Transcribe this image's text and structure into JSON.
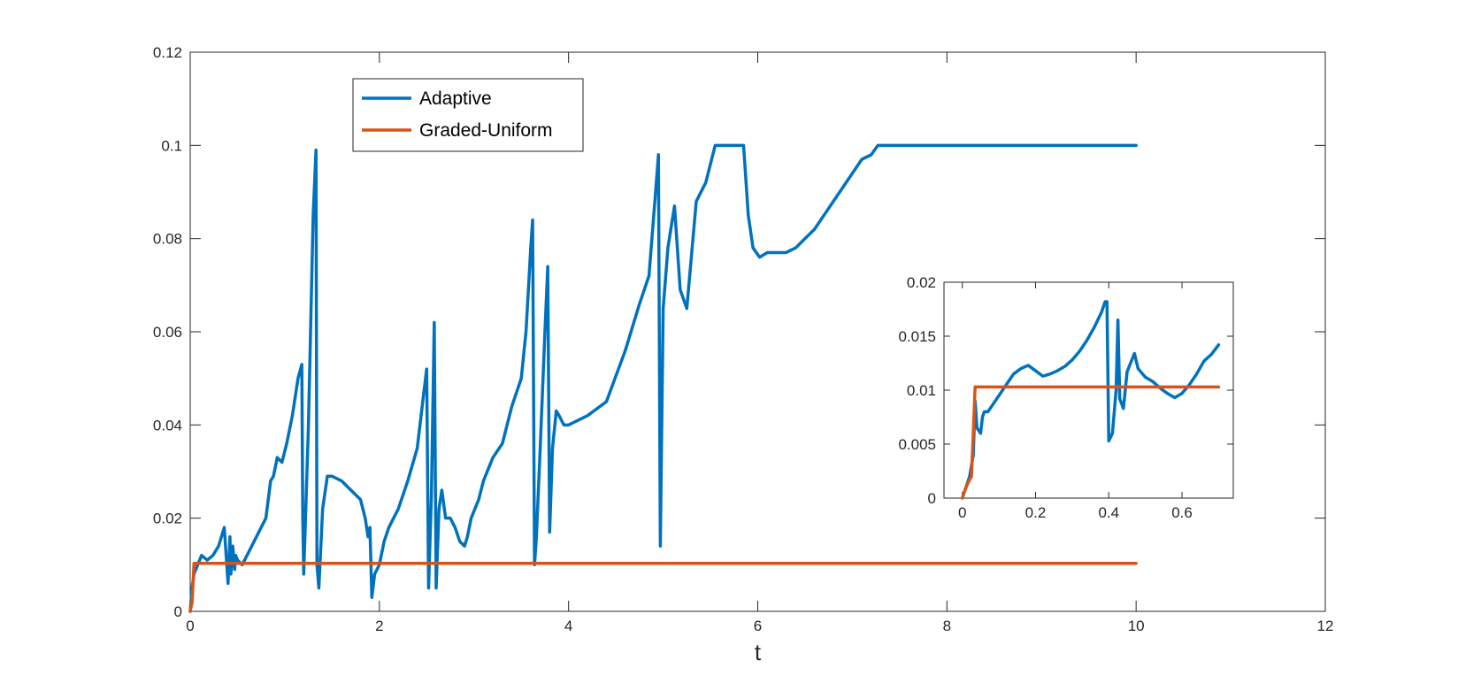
{
  "chart_data": [
    {
      "type": "line",
      "role": "main",
      "xlabel": "t",
      "ylabel": "",
      "xlim": [
        0,
        12
      ],
      "ylim": [
        0,
        0.12
      ],
      "xticks": [
        0,
        2,
        4,
        6,
        8,
        10,
        12
      ],
      "yticks": [
        0,
        0.02,
        0.04,
        0.06,
        0.08,
        0.1,
        0.12
      ],
      "xtick_labels": [
        "0",
        "2",
        "4",
        "6",
        "8",
        "10",
        "12"
      ],
      "ytick_labels": [
        "0",
        "0.02",
        "0.04",
        "0.06",
        "0.08",
        "0.1",
        "0.12"
      ],
      "grid": false,
      "legend": {
        "placement": "top-left",
        "entries": [
          "Adaptive",
          "Graded-Uniform"
        ]
      },
      "series": [
        {
          "name": "Adaptive",
          "color": "#0072BD",
          "x": [
            0,
            0.02,
            0.04,
            0.08,
            0.12,
            0.18,
            0.24,
            0.3,
            0.36,
            0.4,
            0.42,
            0.43,
            0.45,
            0.47,
            0.48,
            0.5,
            0.55,
            0.6,
            0.65,
            0.7,
            0.75,
            0.8,
            0.85,
            0.88,
            0.92,
            0.97,
            1.02,
            1.08,
            1.14,
            1.18,
            1.19,
            1.2,
            1.25,
            1.3,
            1.33,
            1.34,
            1.36,
            1.4,
            1.45,
            1.5,
            1.6,
            1.7,
            1.8,
            1.85,
            1.88,
            1.9,
            1.92,
            1.95,
            2.0,
            2.05,
            2.1,
            2.2,
            2.3,
            2.4,
            2.47,
            2.5,
            2.52,
            2.55,
            2.58,
            2.6,
            2.63,
            2.66,
            2.7,
            2.75,
            2.8,
            2.85,
            2.9,
            2.93,
            2.97,
            3.05,
            3.1,
            3.2,
            3.3,
            3.4,
            3.5,
            3.55,
            3.6,
            3.62,
            3.64,
            3.66,
            3.7,
            3.75,
            3.78,
            3.8,
            3.83,
            3.87,
            3.9,
            3.95,
            4.0,
            4.1,
            4.2,
            4.4,
            4.6,
            4.75,
            4.85,
            4.92,
            4.95,
            4.97,
            5.0,
            5.05,
            5.12,
            5.18,
            5.25,
            5.35,
            5.45,
            5.55,
            5.65,
            5.75,
            5.85,
            5.9,
            5.95,
            6.02,
            6.1,
            6.2,
            6.3,
            6.4,
            6.5,
            6.6,
            6.7,
            6.8,
            6.9,
            7.0,
            7.1,
            7.2,
            7.27,
            7.35,
            7.5,
            8.0,
            9.0,
            10.0
          ],
          "values": [
            0,
            0.005,
            0.008,
            0.01,
            0.012,
            0.011,
            0.012,
            0.014,
            0.018,
            0.006,
            0.016,
            0.008,
            0.014,
            0.009,
            0.012,
            0.011,
            0.01,
            0.012,
            0.014,
            0.016,
            0.018,
            0.02,
            0.028,
            0.029,
            0.033,
            0.032,
            0.036,
            0.042,
            0.05,
            0.053,
            0.02,
            0.008,
            0.04,
            0.085,
            0.099,
            0.01,
            0.005,
            0.022,
            0.029,
            0.029,
            0.028,
            0.026,
            0.024,
            0.02,
            0.016,
            0.018,
            0.003,
            0.008,
            0.01,
            0.015,
            0.018,
            0.022,
            0.028,
            0.035,
            0.047,
            0.052,
            0.005,
            0.025,
            0.062,
            0.005,
            0.022,
            0.026,
            0.02,
            0.02,
            0.018,
            0.015,
            0.014,
            0.016,
            0.02,
            0.024,
            0.028,
            0.033,
            0.036,
            0.044,
            0.05,
            0.06,
            0.078,
            0.084,
            0.01,
            0.016,
            0.035,
            0.06,
            0.074,
            0.017,
            0.035,
            0.043,
            0.042,
            0.04,
            0.04,
            0.041,
            0.042,
            0.045,
            0.056,
            0.066,
            0.072,
            0.09,
            0.098,
            0.014,
            0.065,
            0.078,
            0.087,
            0.069,
            0.065,
            0.088,
            0.092,
            0.1,
            0.1,
            0.1,
            0.1,
            0.085,
            0.078,
            0.076,
            0.077,
            0.077,
            0.077,
            0.078,
            0.08,
            0.082,
            0.085,
            0.088,
            0.091,
            0.094,
            0.097,
            0.098,
            0.1,
            0.1,
            0.1,
            0.1,
            0.1,
            0.1
          ]
        },
        {
          "name": "Graded-Uniform",
          "color": "#D95319",
          "x": [
            0,
            0.01,
            0.02,
            0.03,
            0.04,
            0.05,
            10
          ],
          "values": [
            0,
            0.001,
            0.002,
            0.006,
            0.0103,
            0.0103,
            0.0103
          ]
        }
      ]
    },
    {
      "type": "line",
      "role": "inset",
      "xlabel": "",
      "ylabel": "",
      "xlim": [
        -0.05,
        0.74
      ],
      "ylim": [
        0,
        0.02
      ],
      "xticks": [
        0,
        0.2,
        0.4,
        0.6
      ],
      "yticks": [
        0,
        0.005,
        0.01,
        0.015,
        0.02
      ],
      "xtick_labels": [
        "0",
        "0.2",
        "0.4",
        "0.6"
      ],
      "ytick_labels": [
        "0",
        "0.005",
        "0.01",
        "0.015",
        "0.02"
      ],
      "grid": false,
      "series": [
        {
          "name": "Adaptive",
          "color": "#0072BD",
          "x": [
            0,
            0.01,
            0.02,
            0.03,
            0.035,
            0.04,
            0.05,
            0.055,
            0.06,
            0.07,
            0.08,
            0.1,
            0.12,
            0.14,
            0.16,
            0.18,
            0.2,
            0.22,
            0.24,
            0.26,
            0.28,
            0.3,
            0.32,
            0.34,
            0.36,
            0.38,
            0.39,
            0.395,
            0.4,
            0.41,
            0.42,
            0.425,
            0.43,
            0.44,
            0.45,
            0.47,
            0.48,
            0.5,
            0.52,
            0.54,
            0.56,
            0.58,
            0.6,
            0.62,
            0.64,
            0.66,
            0.68,
            0.7
          ],
          "values": [
            0,
            0.001,
            0.002,
            0.004,
            0.009,
            0.0065,
            0.006,
            0.0075,
            0.008,
            0.008,
            0.0085,
            0.0095,
            0.0105,
            0.0115,
            0.012,
            0.0123,
            0.0118,
            0.0113,
            0.0115,
            0.0118,
            0.0122,
            0.0128,
            0.0136,
            0.0146,
            0.0158,
            0.0172,
            0.0182,
            0.0182,
            0.0053,
            0.006,
            0.01,
            0.0165,
            0.0092,
            0.0083,
            0.0117,
            0.0134,
            0.012,
            0.0112,
            0.0108,
            0.0102,
            0.0097,
            0.0093,
            0.0097,
            0.0105,
            0.0115,
            0.0127,
            0.0133,
            0.0142
          ]
        },
        {
          "name": "Graded-Uniform",
          "color": "#D95319",
          "x": [
            0,
            0.01,
            0.02,
            0.025,
            0.03,
            0.035,
            0.7
          ],
          "values": [
            0,
            0.001,
            0.0017,
            0.002,
            0.006,
            0.0103,
            0.0103
          ]
        }
      ]
    }
  ]
}
